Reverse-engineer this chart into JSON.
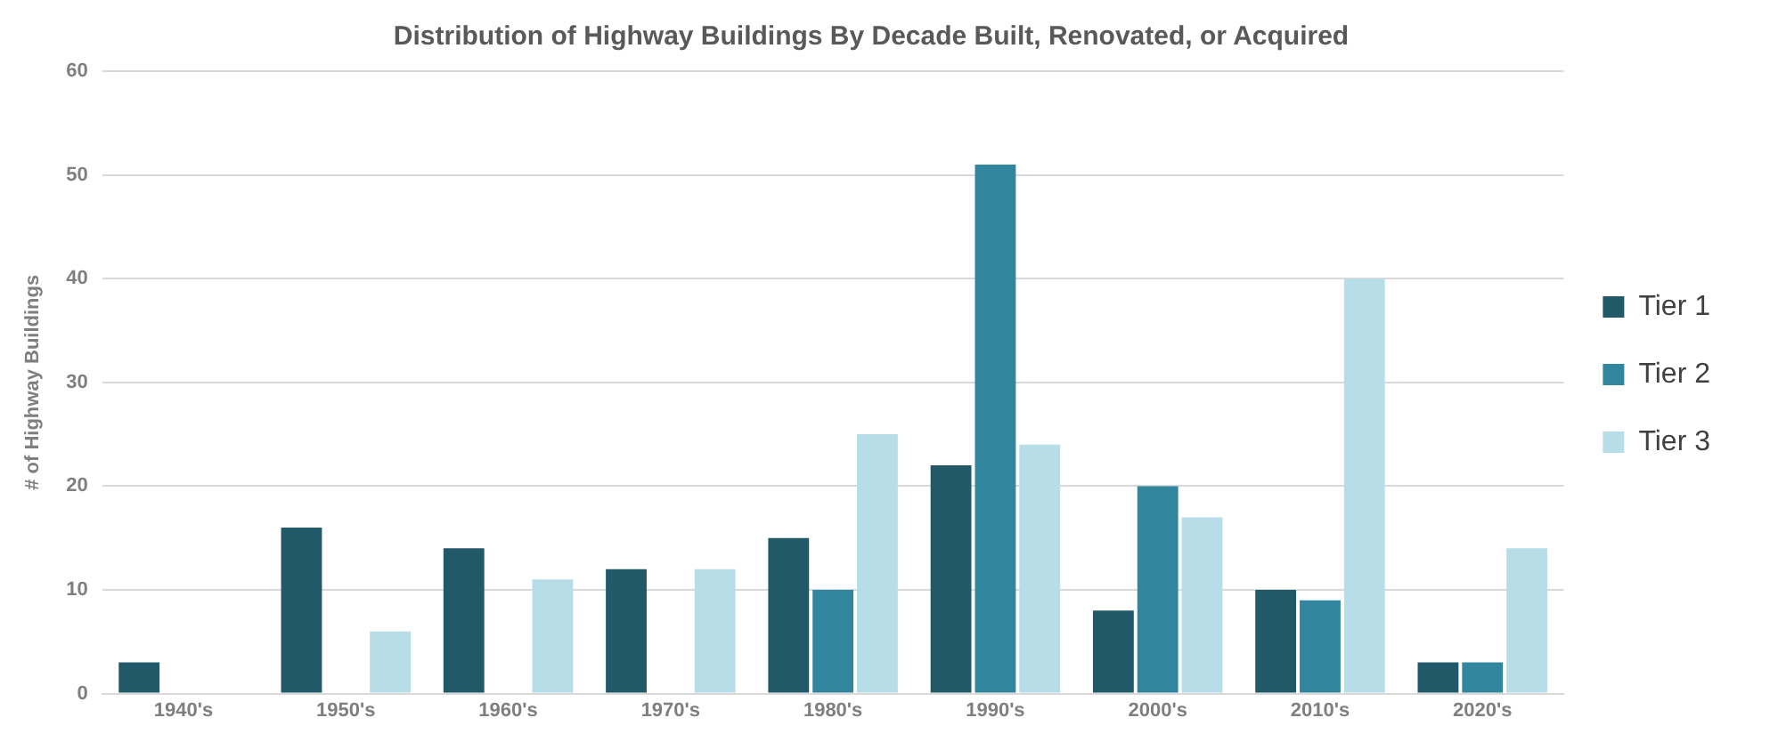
{
  "chart_data": {
    "type": "bar",
    "title": "Distribution of Highway Buildings By Decade Built, Renovated, or Acquired",
    "ylabel": "# of Highway Buildings",
    "categories": [
      "1940's",
      "1950's",
      "1960's",
      "1970's",
      "1980's",
      "1990's",
      "2000's",
      "2010's",
      "2020's"
    ],
    "series": [
      {
        "name": "Tier 1",
        "color": "#215968",
        "values": [
          3,
          16,
          14,
          12,
          15,
          22,
          8,
          10,
          3
        ]
      },
      {
        "name": "Tier 2",
        "color": "#31859c",
        "values": [
          0,
          0,
          0,
          0,
          10,
          51,
          20,
          9,
          3
        ]
      },
      {
        "name": "Tier 3",
        "color": "#b7dee8",
        "values": [
          0,
          6,
          11,
          12,
          25,
          24,
          17,
          40,
          14
        ]
      }
    ],
    "ylim": [
      0,
      60
    ],
    "yticks": [
      0,
      10,
      20,
      30,
      40,
      50,
      60
    ],
    "grid": "y",
    "legend": "right"
  }
}
